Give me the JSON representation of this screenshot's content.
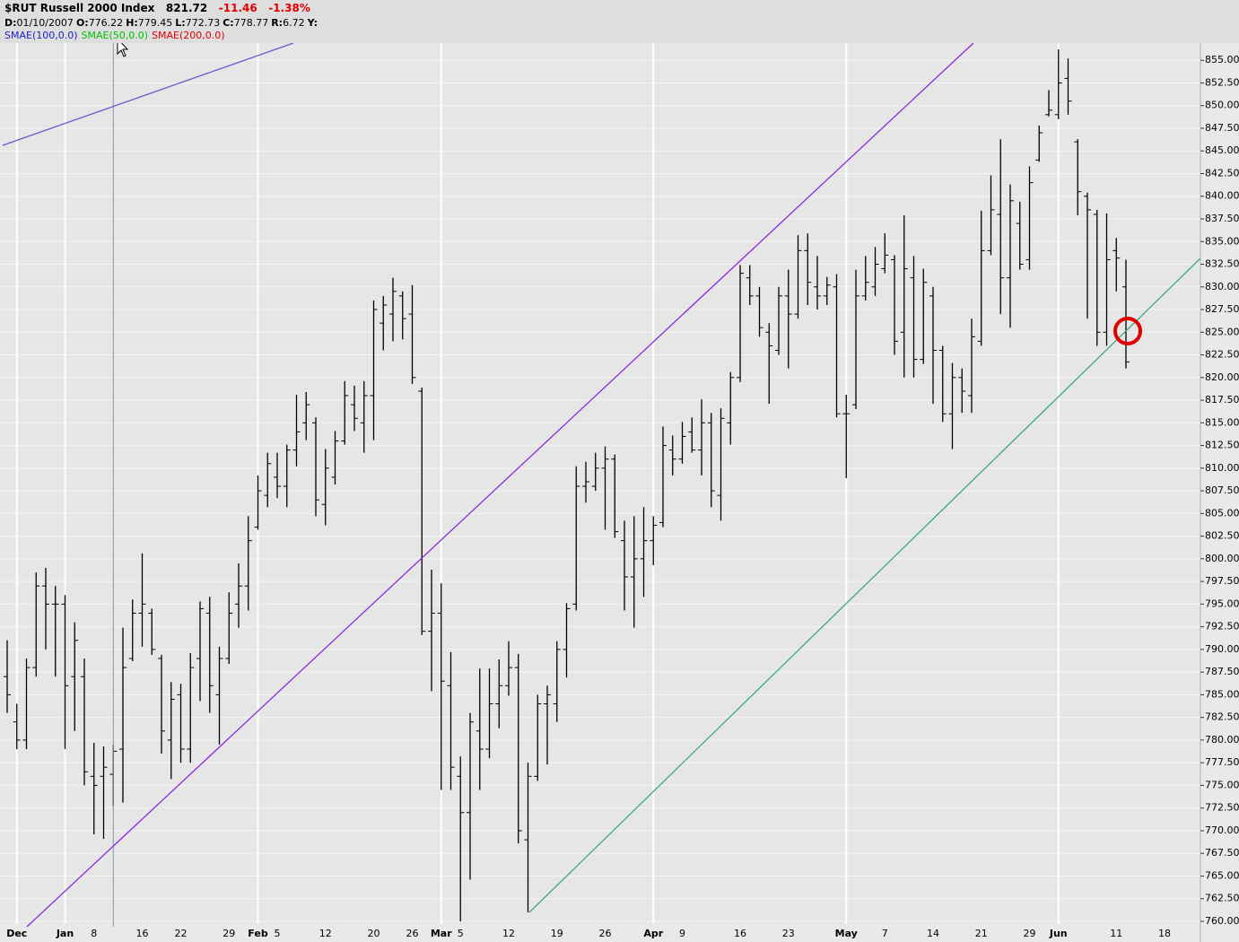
{
  "chart_data": {
    "type": "ohlc",
    "title": "$RUT Russell 2000 Index",
    "quote": {
      "last": "821.72",
      "change": "-11.46",
      "change_pct": "-1.38%"
    },
    "readout": [
      {
        "label": "D:",
        "value": "01/10/2007"
      },
      {
        "label": "O:",
        "value": "776.22"
      },
      {
        "label": "H:",
        "value": "779.45"
      },
      {
        "label": "L:",
        "value": "772.73"
      },
      {
        "label": "C:",
        "value": "778.77"
      },
      {
        "label": "R:",
        "value": "6.72"
      },
      {
        "label": "Y:"
      }
    ],
    "indicators": [
      {
        "name": "SMAE(100,0.0)",
        "color": "#2020c0"
      },
      {
        "name": "SMAE(50,0.0)",
        "color": "#00c000"
      },
      {
        "name": "SMAE(200,0.0)",
        "color": "#e00000"
      }
    ],
    "color": "#000000",
    "grid": true,
    "categories": [
      null,
      "Dec",
      null,
      null,
      null,
      null,
      "Jan",
      null,
      null,
      "8",
      null,
      null,
      null,
      null,
      "16",
      null,
      null,
      null,
      "22",
      null,
      null,
      null,
      null,
      "29",
      null,
      null,
      "Feb",
      null,
      "5",
      null,
      null,
      null,
      null,
      "12",
      null,
      null,
      null,
      null,
      "20",
      null,
      null,
      null,
      "26",
      null,
      null,
      "Mar",
      null,
      "5",
      null,
      null,
      null,
      null,
      "12",
      null,
      null,
      null,
      null,
      "19",
      null,
      null,
      null,
      null,
      "26",
      null,
      null,
      null,
      null,
      "Apr",
      null,
      null,
      "9",
      null,
      null,
      null,
      null,
      null,
      "16",
      null,
      null,
      null,
      null,
      "23",
      null,
      null,
      null,
      null,
      null,
      "May",
      null,
      null,
      null,
      "7",
      null,
      null,
      null,
      null,
      "14",
      null,
      null,
      null,
      null,
      "21",
      null,
      null,
      null,
      null,
      "29",
      null,
      null,
      "Jun",
      null,
      null,
      null,
      null,
      null,
      "11",
      null,
      null,
      null,
      null,
      "18",
      null,
      null,
      null
    ],
    "open": [
      787,
      782,
      780,
      788,
      797,
      795,
      795,
      787,
      787,
      776,
      776,
      776.22,
      779,
      789,
      794,
      794,
      789,
      780,
      785,
      779,
      789,
      794,
      785,
      789,
      795,
      797,
      803.5,
      807,
      809,
      808,
      812,
      815,
      815,
      806,
      809,
      813,
      817,
      815,
      818,
      826,
      827,
      829,
      827,
      818.5,
      792,
      794,
      786,
      776,
      772,
      781,
      779,
      784,
      786,
      788,
      769,
      776,
      784,
      784,
      790,
      795,
      808,
      808,
      810,
      811,
      802,
      798,
      800,
      802,
      804,
      812,
      811,
      814,
      812,
      815,
      807,
      815,
      820,
      831,
      829,
      825,
      823,
      829,
      827,
      834,
      830,
      829,
      830,
      816,
      817,
      829,
      830,
      832,
      833,
      825,
      831,
      822,
      829,
      823,
      816,
      820,
      818,
      824,
      834,
      838,
      831,
      837,
      833,
      844,
      849,
      849,
      853,
      846,
      840,
      838,
      825,
      834,
      830,
      null,
      null,
      null,
      null,
      null,
      null,
      null
    ],
    "high": [
      791,
      784,
      789,
      798.5,
      799,
      797,
      796,
      793,
      789,
      779.7,
      779.3,
      779.45,
      792.4,
      795.5,
      800.6,
      794.5,
      789.4,
      786.4,
      786.2,
      789.6,
      795.3,
      795.8,
      790.3,
      796.3,
      799.5,
      804.7,
      809.2,
      811.7,
      811.7,
      812.6,
      818.1,
      818.4,
      815.6,
      812.1,
      814.1,
      819.6,
      819.1,
      819.6,
      828.5,
      829,
      831,
      829.5,
      830.2,
      818.9,
      798.8,
      797.3,
      789.7,
      778.2,
      783,
      787.9,
      787.9,
      788.9,
      790.9,
      789.5,
      777.5,
      785,
      786,
      790.9,
      795.1,
      810.2,
      810.7,
      811.7,
      812.4,
      811.5,
      804.2,
      804.7,
      805.7,
      804.7,
      814.6,
      813.6,
      815.1,
      815.6,
      817.6,
      816.1,
      816.6,
      820.6,
      832.4,
      832.4,
      830,
      826,
      830,
      831.9,
      835.7,
      835.9,
      833.4,
      831.1,
      831.4,
      818.1,
      831.9,
      833.4,
      834.4,
      835.9,
      833.5,
      837.9,
      833.4,
      832,
      830,
      823.5,
      821.6,
      821,
      826.5,
      838.4,
      842.3,
      846.3,
      841.3,
      839.4,
      843.3,
      847.8,
      851.7,
      856.2,
      855.2,
      846.3,
      840.4,
      838.5,
      838.1,
      835.4,
      833,
      null,
      null,
      null,
      null,
      null,
      null,
      null
    ],
    "low": [
      783,
      779,
      779,
      787,
      790,
      787,
      779,
      781,
      775,
      769.6,
      769.1,
      772.73,
      773.1,
      788.7,
      790.3,
      789.4,
      778.5,
      775.7,
      777.5,
      777.5,
      784.3,
      783,
      779.5,
      788.4,
      792.4,
      794.3,
      803.2,
      805.7,
      806.7,
      805.7,
      810.2,
      813.1,
      804.7,
      803.7,
      808.2,
      812.6,
      814.1,
      811.7,
      813.1,
      823,
      824,
      824.2,
      819.3,
      791.6,
      785.4,
      774.5,
      774.5,
      760,
      764.6,
      774.5,
      778,
      781.3,
      784.9,
      768.6,
      761,
      775.5,
      777.3,
      782,
      786.9,
      794.3,
      806.2,
      807.5,
      803.2,
      802.3,
      794.3,
      792.4,
      795.8,
      799.3,
      803.5,
      809.2,
      810.5,
      811.7,
      809.2,
      805.7,
      804.2,
      812.6,
      819.5,
      828,
      824.5,
      817.1,
      822.5,
      821,
      826.5,
      828,
      827.5,
      828,
      815.6,
      808.9,
      816.5,
      828.5,
      829,
      831.5,
      822.5,
      820,
      820,
      821.5,
      817.1,
      815.1,
      812.1,
      816.1,
      816.1,
      823.5,
      833.5,
      827,
      825.5,
      831.9,
      831.9,
      843.8,
      848.8,
      848.5,
      849,
      837.9,
      826.5,
      823.5,
      823.5,
      829.5,
      821,
      null,
      null,
      null,
      null,
      null,
      null,
      null
    ],
    "close": [
      785,
      780,
      788,
      797,
      795,
      795,
      786,
      791,
      776.5,
      775,
      777,
      778.77,
      788,
      794,
      795,
      790,
      781,
      784.5,
      779,
      788,
      794.5,
      786,
      789,
      794,
      797,
      802,
      807.5,
      810.5,
      808,
      812,
      814,
      817,
      806.5,
      810,
      813,
      818,
      815.5,
      818,
      827.5,
      828,
      829.5,
      826.5,
      820,
      792,
      794,
      786.5,
      777,
      772,
      782,
      779,
      784,
      786,
      788,
      770,
      776,
      784,
      785,
      790,
      794.5,
      808,
      808.5,
      810,
      811,
      803,
      798,
      800,
      802,
      803.7,
      812.5,
      811,
      813.5,
      812,
      815,
      807.5,
      815.5,
      820,
      831.5,
      829,
      825.5,
      823.5,
      829,
      827,
      834,
      830.5,
      829,
      830.2,
      816,
      816,
      829,
      830.5,
      832.5,
      833.5,
      824,
      832,
      822,
      830.5,
      823,
      816,
      820,
      818.5,
      824.5,
      834,
      838.5,
      831,
      839.5,
      832.5,
      841.5,
      847,
      849.5,
      852.5,
      850.5,
      840.5,
      838.5,
      825,
      833,
      833.18,
      821.72,
      null,
      null,
      null,
      null,
      null,
      null,
      null
    ],
    "ylim": [
      759.7,
      856.9
    ],
    "yticks": [
      {
        "value": 760,
        "label": "760.00"
      },
      {
        "value": 762.5,
        "label": "762.50"
      },
      {
        "value": 765,
        "label": "765.00"
      },
      {
        "value": 767.5,
        "label": "767.50"
      },
      {
        "value": 770,
        "label": "770.00"
      },
      {
        "value": 772.5,
        "label": "772.50"
      },
      {
        "value": 775,
        "label": "775.00"
      },
      {
        "value": 777.5,
        "label": "777.50"
      },
      {
        "value": 780,
        "label": "780.00"
      },
      {
        "value": 782.5,
        "label": "782.50"
      },
      {
        "value": 785,
        "label": "785.00"
      },
      {
        "value": 787.5,
        "label": "787.50"
      },
      {
        "value": 790,
        "label": "790.00"
      },
      {
        "value": 792.5,
        "label": "792.50"
      },
      {
        "value": 795,
        "label": "795.00"
      },
      {
        "value": 797.5,
        "label": "797.50"
      },
      {
        "value": 800,
        "label": "800.00"
      },
      {
        "value": 802.5,
        "label": "802.50"
      },
      {
        "value": 805,
        "label": "805.00"
      },
      {
        "value": 807.5,
        "label": "807.50"
      },
      {
        "value": 810,
        "label": "810.00"
      },
      {
        "value": 812.5,
        "label": "812.50"
      },
      {
        "value": 815,
        "label": "815.00"
      },
      {
        "value": 817.5,
        "label": "817.50"
      },
      {
        "value": 820,
        "label": "820.00"
      },
      {
        "value": 822.5,
        "label": "822.50"
      },
      {
        "value": 825,
        "label": "825.00"
      },
      {
        "value": 827.5,
        "label": "827.50"
      },
      {
        "value": 830,
        "label": "830.00"
      },
      {
        "value": 832.5,
        "label": "832.50"
      },
      {
        "value": 835,
        "label": "835.00"
      },
      {
        "value": 837.5,
        "label": "837.50"
      },
      {
        "value": 840,
        "label": "840.00"
      },
      {
        "value": 842.5,
        "label": "842.50"
      },
      {
        "value": 845,
        "label": "845.00"
      },
      {
        "value": 847.5,
        "label": "847.50"
      },
      {
        "value": 850,
        "label": "850.00"
      },
      {
        "value": 852.5,
        "label": "852.50"
      },
      {
        "value": 855,
        "label": "855.00"
      }
    ]
  }
}
